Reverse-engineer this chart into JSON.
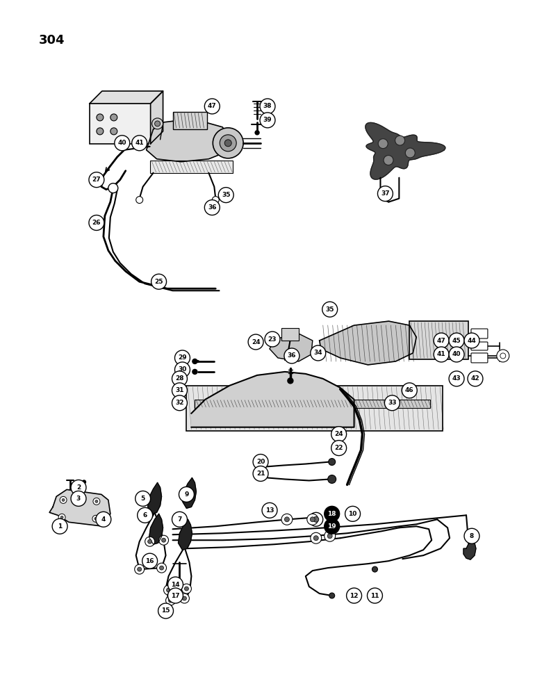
{
  "title": "304",
  "background_color": "#ffffff",
  "line_color": "#000000",
  "figsize": [
    7.8,
    10.0
  ],
  "dpi": 100
}
